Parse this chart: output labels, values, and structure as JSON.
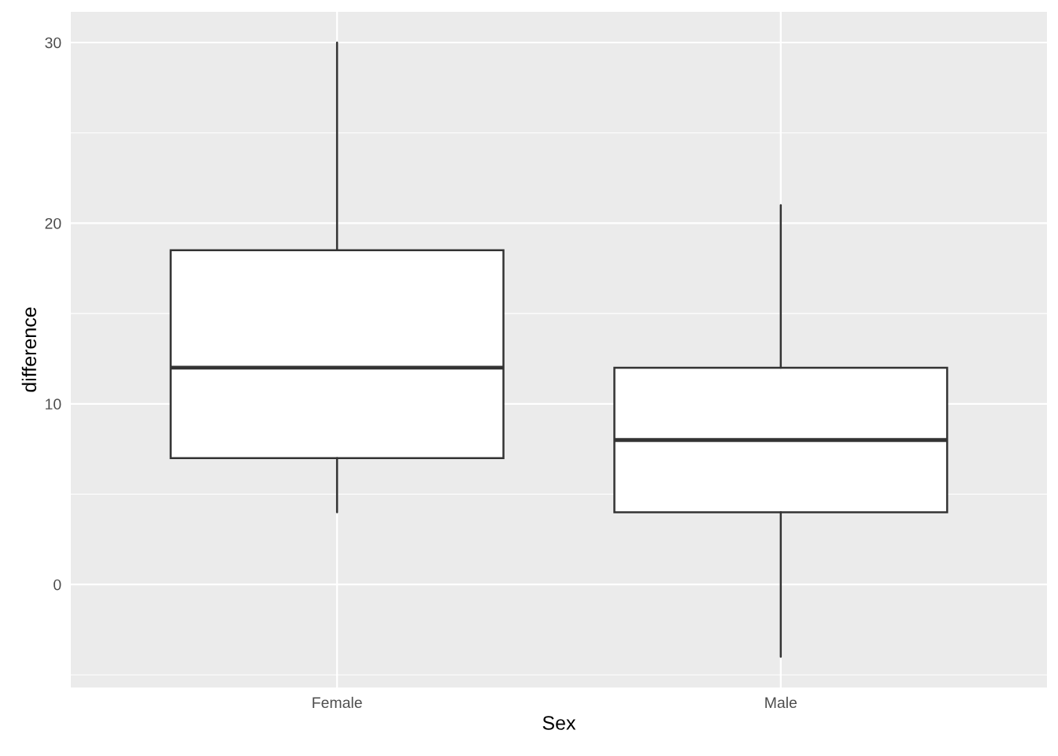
{
  "chart_data": {
    "type": "box",
    "xlabel": "Sex",
    "ylabel": "difference",
    "categories": [
      "Female",
      "Male"
    ],
    "boxes": [
      {
        "low": 4,
        "q1": 7,
        "median": 12,
        "q3": 18.5,
        "high": 30
      },
      {
        "low": -4,
        "q1": 4,
        "median": 8,
        "q3": 12,
        "high": 21
      }
    ],
    "color": "#ffffff",
    "ylim": [
      -5.7,
      31.7
    ],
    "yticks": [
      0,
      10,
      20,
      30
    ],
    "grid": true
  }
}
